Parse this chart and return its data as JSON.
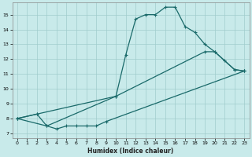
{
  "xlabel": "Humidex (Indice chaleur)",
  "xlim": [
    -0.5,
    23.5
  ],
  "ylim": [
    6.7,
    15.8
  ],
  "yticks": [
    7,
    8,
    9,
    10,
    11,
    12,
    13,
    14,
    15
  ],
  "xticks": [
    0,
    1,
    2,
    3,
    4,
    5,
    6,
    7,
    8,
    9,
    10,
    11,
    12,
    13,
    14,
    15,
    16,
    17,
    18,
    19,
    20,
    21,
    22,
    23
  ],
  "bg_color": "#c8eaea",
  "grid_color": "#a0cccc",
  "line_color": "#1a6a6a",
  "line1_x": [
    0,
    2,
    10,
    11,
    12,
    13,
    14,
    15,
    16,
    17,
    18,
    19,
    20,
    21,
    22,
    23
  ],
  "line1_y": [
    8.0,
    8.3,
    9.5,
    12.3,
    14.7,
    15.0,
    15.0,
    15.5,
    15.5,
    14.2,
    13.8,
    13.0,
    12.5,
    11.9,
    11.3,
    11.2
  ],
  "line2_x": [
    0,
    2,
    3,
    10,
    19,
    20,
    22,
    23
  ],
  "line2_y": [
    8.0,
    8.3,
    7.5,
    9.5,
    12.5,
    12.5,
    11.3,
    11.2
  ],
  "line3_x": [
    0,
    3,
    4,
    5,
    6,
    7,
    8,
    9,
    23
  ],
  "line3_y": [
    8.0,
    7.5,
    7.3,
    7.5,
    7.5,
    7.5,
    7.5,
    7.8,
    11.2
  ]
}
